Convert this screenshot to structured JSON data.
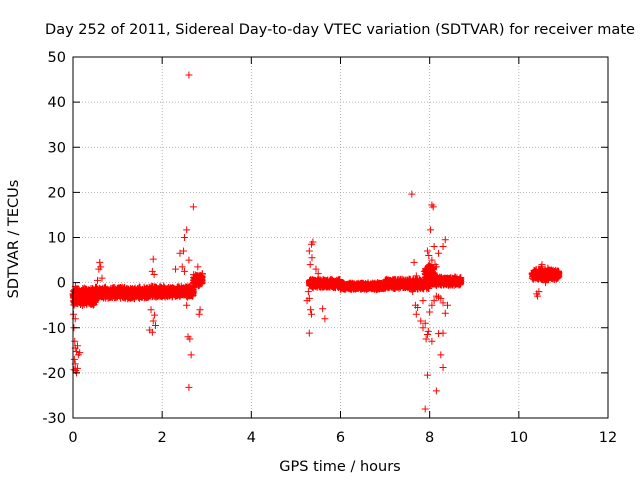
{
  "chart_data": {
    "type": "scatter",
    "title": "Day 252 of 2011, Sidereal Day-to-day VTEC variation (SDTVAR) for receiver mate",
    "xlabel": "GPS time / hours",
    "ylabel": "SDTVAR / TECUs",
    "xlim": [
      0,
      12
    ],
    "ylim": [
      -30,
      50
    ],
    "xticks": [
      0,
      2,
      4,
      6,
      8,
      10,
      12
    ],
    "yticks": [
      -30,
      -20,
      -10,
      0,
      10,
      20,
      30,
      40,
      50
    ],
    "grid": true,
    "marker": "+",
    "color": "#ff0000",
    "series": [
      {
        "name": "SDTVAR",
        "bands": [
          {
            "x_start": 0.0,
            "x_end": 0.5,
            "y_center": -3.0,
            "half_width": 2.2
          },
          {
            "x_start": 0.5,
            "x_end": 1.7,
            "y_center": -2.3,
            "half_width": 1.4
          },
          {
            "x_start": 1.7,
            "x_end": 2.7,
            "y_center": -2.0,
            "half_width": 1.3
          },
          {
            "x_start": 2.7,
            "x_end": 2.9,
            "y_center": 0.5,
            "half_width": 1.5
          },
          {
            "x_start": 5.3,
            "x_end": 6.0,
            "y_center": -0.2,
            "half_width": 1.0
          },
          {
            "x_start": 6.0,
            "x_end": 7.0,
            "y_center": -0.8,
            "half_width": 0.8
          },
          {
            "x_start": 7.0,
            "x_end": 8.0,
            "y_center": -0.3,
            "half_width": 1.2
          },
          {
            "x_start": 7.9,
            "x_end": 8.1,
            "y_center": 2.0,
            "half_width": 2.0
          },
          {
            "x_start": 8.0,
            "x_end": 8.7,
            "y_center": 0.3,
            "half_width": 1.0
          },
          {
            "x_start": 10.3,
            "x_end": 10.9,
            "y_center": 1.8,
            "half_width": 1.2
          }
        ],
        "points": [
          [
            2.6,
            46
          ],
          [
            2.7,
            16.8
          ],
          [
            2.55,
            11.7
          ],
          [
            2.5,
            10
          ],
          [
            2.48,
            7
          ],
          [
            2.4,
            6.5
          ],
          [
            2.6,
            5
          ],
          [
            2.45,
            3.5
          ],
          [
            2.3,
            3
          ],
          [
            2.5,
            2.5
          ],
          [
            2.55,
            -5
          ],
          [
            2.58,
            -12
          ],
          [
            2.62,
            -12.5
          ],
          [
            2.65,
            -16
          ],
          [
            2.6,
            -23.2
          ],
          [
            2.8,
            3.5
          ],
          [
            2.82,
            1.5
          ],
          [
            2.85,
            -6
          ],
          [
            2.83,
            -7
          ],
          [
            2.9,
            2
          ],
          [
            2.78,
            0.8
          ],
          [
            0.02,
            -10
          ],
          [
            0.04,
            -13
          ],
          [
            0.05,
            -14.5
          ],
          [
            0.08,
            -15.3
          ],
          [
            0.1,
            -14
          ],
          [
            0.12,
            -16
          ],
          [
            0.15,
            -15.5
          ],
          [
            0.05,
            -18
          ],
          [
            0.06,
            -19.5
          ],
          [
            0.08,
            -20
          ],
          [
            0.1,
            -19
          ],
          [
            0.02,
            -19.3
          ],
          [
            0.03,
            -17
          ],
          [
            0.01,
            -7
          ],
          [
            0.05,
            -8
          ],
          [
            0.6,
            4.5
          ],
          [
            0.58,
            3
          ],
          [
            0.62,
            3.5
          ],
          [
            0.65,
            1
          ],
          [
            0.55,
            0.5
          ],
          [
            1.8,
            5.2
          ],
          [
            1.78,
            2.5
          ],
          [
            1.82,
            1.8
          ],
          [
            1.75,
            -6
          ],
          [
            1.8,
            -8.5
          ],
          [
            1.85,
            -9.5
          ],
          [
            1.72,
            -10.5
          ],
          [
            1.78,
            -11
          ],
          [
            1.83,
            -7.2
          ],
          [
            5.3,
            7
          ],
          [
            5.35,
            8.5
          ],
          [
            5.38,
            9
          ],
          [
            5.32,
            4
          ],
          [
            5.36,
            5.5
          ],
          [
            5.28,
            -2
          ],
          [
            5.3,
            -3.5
          ],
          [
            5.25,
            -4
          ],
          [
            5.33,
            -6
          ],
          [
            5.35,
            -7
          ],
          [
            5.3,
            -11.2
          ],
          [
            5.45,
            3
          ],
          [
            5.5,
            2
          ],
          [
            5.6,
            -5.8
          ],
          [
            5.65,
            -8
          ],
          [
            7.6,
            19.6
          ],
          [
            7.65,
            4.5
          ],
          [
            7.7,
            1.5
          ],
          [
            7.62,
            -2
          ],
          [
            7.68,
            -5
          ],
          [
            7.7,
            -7
          ],
          [
            7.73,
            -5.5
          ],
          [
            7.8,
            -8.5
          ],
          [
            7.85,
            -10
          ],
          [
            8.05,
            17.2
          ],
          [
            8.08,
            16.8
          ],
          [
            8.02,
            11.7
          ],
          [
            8.1,
            8
          ],
          [
            7.95,
            7
          ],
          [
            7.98,
            6
          ],
          [
            8.0,
            4
          ],
          [
            8.05,
            5
          ],
          [
            7.92,
            3
          ],
          [
            7.88,
            2.5
          ],
          [
            8.12,
            4
          ],
          [
            8.15,
            3.5
          ],
          [
            8.2,
            6.5
          ],
          [
            8.3,
            8
          ],
          [
            8.35,
            9.5
          ],
          [
            7.92,
            -12.5
          ],
          [
            7.95,
            -11.5
          ],
          [
            7.9,
            -9
          ],
          [
            7.97,
            -10.8
          ],
          [
            8.0,
            -6.5
          ],
          [
            8.05,
            -5
          ],
          [
            8.1,
            -4
          ],
          [
            8.15,
            -3
          ],
          [
            8.2,
            -3.2
          ],
          [
            8.25,
            -3.5
          ],
          [
            8.3,
            -4.5
          ],
          [
            8.4,
            -5
          ],
          [
            7.95,
            -20.5
          ],
          [
            8.05,
            -13
          ],
          [
            7.9,
            -28
          ],
          [
            8.15,
            -24
          ],
          [
            8.25,
            -16
          ],
          [
            8.3,
            -18.8
          ],
          [
            8.2,
            -11.3
          ],
          [
            8.3,
            -11.2
          ],
          [
            8.35,
            -6.8
          ],
          [
            7.85,
            -4
          ],
          [
            10.4,
            -2.5
          ],
          [
            10.42,
            -3.0
          ],
          [
            10.45,
            -2
          ],
          [
            10.5,
            3.5
          ],
          [
            10.52,
            4
          ],
          [
            10.45,
            3
          ],
          [
            10.6,
            0
          ],
          [
            10.65,
            3.2
          ],
          [
            10.8,
            2.5
          ],
          [
            10.3,
            1
          ]
        ]
      }
    ]
  }
}
